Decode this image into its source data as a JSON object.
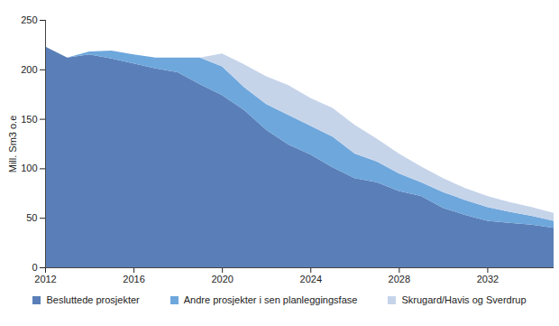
{
  "chart_data": {
    "type": "area",
    "stacked": true,
    "y_label": "Mill. Sm3 o.e",
    "x": [
      2012,
      2013,
      2014,
      2015,
      2016,
      2017,
      2018,
      2019,
      2020,
      2021,
      2022,
      2023,
      2024,
      2025,
      2026,
      2027,
      2028,
      2029,
      2030,
      2031,
      2032,
      2033,
      2034,
      2035
    ],
    "series": [
      {
        "name": "Besluttede prosjekter",
        "color": "#5a7fb8",
        "values": [
          223,
          212,
          215,
          211,
          206,
          201,
          197,
          185,
          174,
          159,
          139,
          124,
          114,
          101,
          90,
          86,
          77,
          72,
          60,
          53,
          47,
          45,
          43,
          40
        ]
      },
      {
        "name": "Andre prosjekter i sen planleggingsfase",
        "color": "#6ea7dc",
        "values": [
          0,
          0,
          3,
          8,
          9,
          11,
          15,
          27,
          29,
          23,
          26,
          30,
          29,
          31,
          25,
          21,
          18,
          14,
          16,
          15,
          14,
          11,
          9,
          7
        ]
      },
      {
        "name": "Skrugard/Havis og Sverdrup",
        "color": "#c6d4ea",
        "values": [
          0,
          0,
          0,
          0,
          0,
          0,
          0,
          0,
          13,
          23,
          28,
          30,
          28,
          29,
          29,
          23,
          20,
          16,
          14,
          12,
          11,
          10,
          9,
          8
        ]
      }
    ],
    "xlim": [
      2012,
      2035
    ],
    "xticks": [
      2012,
      2016,
      2020,
      2024,
      2028,
      2032
    ],
    "ylim": [
      0,
      250
    ],
    "yticks": [
      0,
      50,
      100,
      150,
      200,
      250
    ],
    "grid": false,
    "legend": "bottom"
  }
}
